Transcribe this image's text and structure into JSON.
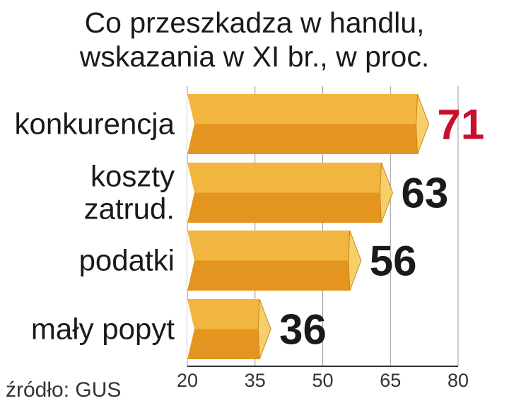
{
  "chart_data": {
    "type": "bar",
    "orientation": "horizontal",
    "title_lines": [
      "Co przeszkadza w handlu,",
      "wskazania w XI br., w proc."
    ],
    "categories": [
      [
        "konkurencja"
      ],
      [
        "koszty",
        "zatrud."
      ],
      [
        "podatki"
      ],
      [
        "mały popyt"
      ]
    ],
    "values": [
      71,
      63,
      56,
      36
    ],
    "xlim": [
      20,
      80
    ],
    "xticks": [
      "20",
      "35",
      "50",
      "65",
      "80"
    ],
    "grid": true,
    "highlight_index": 0
  },
  "source": "źródło: GUS",
  "colors": {
    "bar_top": "#f2b540",
    "bar_bottom": "#e3951f",
    "bar_cap": "#f7cf6a",
    "bar_edge": "#c9831a",
    "value_highlight": "#c8102e",
    "value_default": "#1a1a1a",
    "grid": "#999999"
  }
}
